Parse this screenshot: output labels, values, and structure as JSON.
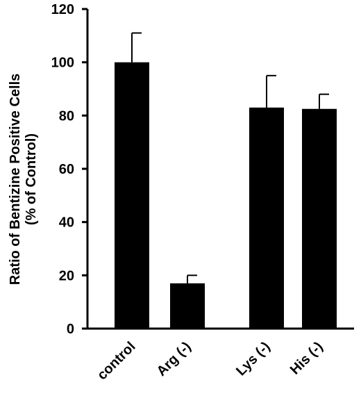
{
  "chart_data": {
    "type": "bar",
    "categories": [
      "control",
      "Arg (-)",
      "Lys (-)",
      "His (-)"
    ],
    "values": [
      100,
      17,
      83,
      82.5
    ],
    "errors": [
      11,
      3,
      12,
      5.5
    ],
    "title": "",
    "xlabel": "",
    "ylabel_line1": "Ratio of Bentizine Positive Cells",
    "ylabel_line2": "(% of Control)",
    "ylim": [
      0,
      120
    ],
    "yticks": [
      "0",
      "20",
      "40",
      "60",
      "80",
      "100",
      "120"
    ],
    "ytick_values": [
      0,
      20,
      40,
      60,
      80,
      100,
      120
    ],
    "bar_color": "#000000",
    "grid": false,
    "legend": "none"
  }
}
